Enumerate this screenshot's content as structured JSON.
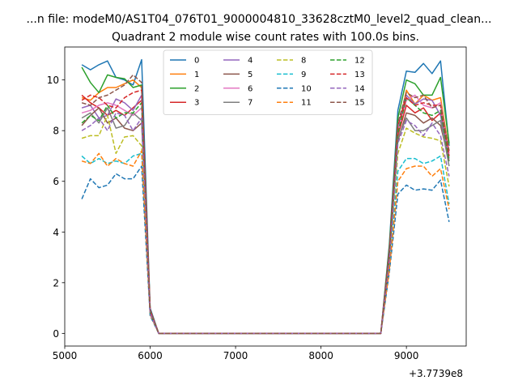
{
  "chart_data": {
    "type": "line",
    "suptitle": "...n file: modeM0/AS1T04_076T01_9000004810_33628cztM0_level2_quad_clean...",
    "title": "Quadrant 2 module wise count rates with 100.0s bins.",
    "xlabel": "",
    "ylabel": "",
    "x_offset_label": "+3.7739e8",
    "xlim": [
      5000,
      9700
    ],
    "ylim": [
      -0.5,
      11.3
    ],
    "xticks": [
      5000,
      6000,
      7000,
      8000,
      9000
    ],
    "yticks": [
      0,
      2,
      4,
      6,
      8,
      10
    ],
    "grid": false,
    "legend_position": "top-center",
    "legend_columns": 4,
    "x": [
      5200,
      5300,
      5400,
      5500,
      5600,
      5700,
      5800,
      5900,
      6000,
      6100,
      6200,
      6300,
      6400,
      6500,
      6600,
      6700,
      6800,
      6900,
      7000,
      7100,
      7200,
      7300,
      7400,
      7500,
      7600,
      7700,
      7800,
      7900,
      8000,
      8100,
      8200,
      8300,
      8400,
      8500,
      8600,
      8700,
      8800,
      8900,
      9000,
      9100,
      9200,
      9300,
      9400,
      9500
    ],
    "series": [
      {
        "name": "0",
        "color": "#1f77b4",
        "dash": false,
        "values": [
          10.6,
          10.4,
          10.6,
          10.75,
          10.1,
          10.0,
          9.8,
          10.8,
          1.0,
          0,
          0,
          0,
          0,
          0,
          0,
          0,
          0,
          0,
          0,
          0,
          0,
          0,
          0,
          0,
          0,
          0,
          0,
          0,
          0,
          0,
          0,
          0,
          0,
          0,
          0,
          0,
          3.5,
          8.8,
          10.35,
          10.3,
          10.65,
          10.25,
          10.75,
          7.4
        ]
      },
      {
        "name": "1",
        "color": "#ff7f0e",
        "dash": false,
        "values": [
          9.3,
          9.2,
          9.5,
          9.7,
          9.7,
          9.85,
          10.0,
          9.7,
          0.9,
          0,
          0,
          0,
          0,
          0,
          0,
          0,
          0,
          0,
          0,
          0,
          0,
          0,
          0,
          0,
          0,
          0,
          0,
          0,
          0,
          0,
          0,
          0,
          0,
          0,
          0,
          0,
          3.2,
          8.0,
          9.6,
          9.05,
          9.4,
          9.2,
          9.3,
          7.2
        ]
      },
      {
        "name": "2",
        "color": "#2ca02c",
        "dash": false,
        "values": [
          10.5,
          9.9,
          9.5,
          10.2,
          10.1,
          10.05,
          9.7,
          9.8,
          0.95,
          0,
          0,
          0,
          0,
          0,
          0,
          0,
          0,
          0,
          0,
          0,
          0,
          0,
          0,
          0,
          0,
          0,
          0,
          0,
          0,
          0,
          0,
          0,
          0,
          0,
          0,
          0,
          3.4,
          8.5,
          10.0,
          9.85,
          9.4,
          9.4,
          10.1,
          7.5
        ]
      },
      {
        "name": "3",
        "color": "#d62728",
        "dash": false,
        "values": [
          9.4,
          9.1,
          8.9,
          8.6,
          8.8,
          8.6,
          8.9,
          9.2,
          0.85,
          0,
          0,
          0,
          0,
          0,
          0,
          0,
          0,
          0,
          0,
          0,
          0,
          0,
          0,
          0,
          0,
          0,
          0,
          0,
          0,
          0,
          0,
          0,
          0,
          0,
          0,
          0,
          3.0,
          7.8,
          9.0,
          8.7,
          8.9,
          8.4,
          8.7,
          7.0
        ]
      },
      {
        "name": "4",
        "color": "#9467bd",
        "dash": false,
        "values": [
          8.9,
          9.0,
          8.5,
          8.6,
          9.25,
          9.1,
          8.8,
          9.4,
          0.9,
          0,
          0,
          0,
          0,
          0,
          0,
          0,
          0,
          0,
          0,
          0,
          0,
          0,
          0,
          0,
          0,
          0,
          0,
          0,
          0,
          0,
          0,
          0,
          0,
          0,
          0,
          0,
          3.1,
          8.1,
          9.4,
          9.05,
          9.25,
          9.2,
          8.6,
          6.9
        ]
      },
      {
        "name": "5",
        "color": "#8c564b",
        "dash": false,
        "values": [
          8.2,
          8.6,
          8.9,
          8.3,
          8.5,
          8.1,
          8.0,
          8.3,
          0.85,
          0,
          0,
          0,
          0,
          0,
          0,
          0,
          0,
          0,
          0,
          0,
          0,
          0,
          0,
          0,
          0,
          0,
          0,
          0,
          0,
          0,
          0,
          0,
          0,
          0,
          0,
          0,
          2.9,
          7.6,
          8.7,
          8.6,
          8.3,
          8.5,
          8.2,
          6.8
        ]
      },
      {
        "name": "6",
        "color": "#e377c2",
        "dash": false,
        "values": [
          8.7,
          8.8,
          9.0,
          9.1,
          9.0,
          8.8,
          8.6,
          8.9,
          0.9,
          0,
          0,
          0,
          0,
          0,
          0,
          0,
          0,
          0,
          0,
          0,
          0,
          0,
          0,
          0,
          0,
          0,
          0,
          0,
          0,
          0,
          0,
          0,
          0,
          0,
          0,
          0,
          3.1,
          8.0,
          9.2,
          9.4,
          9.0,
          8.9,
          9.1,
          7.1
        ]
      },
      {
        "name": "7",
        "color": "#7f7f7f",
        "dash": false,
        "values": [
          8.5,
          8.7,
          8.3,
          8.9,
          8.1,
          8.2,
          8.7,
          8.4,
          0.85,
          0,
          0,
          0,
          0,
          0,
          0,
          0,
          0,
          0,
          0,
          0,
          0,
          0,
          0,
          0,
          0,
          0,
          0,
          0,
          0,
          0,
          0,
          0,
          0,
          0,
          0,
          0,
          3.0,
          7.7,
          8.5,
          8.0,
          8.0,
          8.2,
          8.4,
          6.6
        ]
      },
      {
        "name": "8",
        "color": "#bcbd22",
        "dash": true,
        "values": [
          7.7,
          7.8,
          7.8,
          8.6,
          7.1,
          7.75,
          7.8,
          7.4,
          0.8,
          0,
          0,
          0,
          0,
          0,
          0,
          0,
          0,
          0,
          0,
          0,
          0,
          0,
          0,
          0,
          0,
          0,
          0,
          0,
          0,
          0,
          0,
          0,
          0,
          0,
          0,
          0,
          2.8,
          7.1,
          8.1,
          7.9,
          7.75,
          7.7,
          7.6,
          5.8
        ]
      },
      {
        "name": "9",
        "color": "#17becf",
        "dash": true,
        "values": [
          7.0,
          6.7,
          6.9,
          6.7,
          6.8,
          6.7,
          7.0,
          7.1,
          0.75,
          0,
          0,
          0,
          0,
          0,
          0,
          0,
          0,
          0,
          0,
          0,
          0,
          0,
          0,
          0,
          0,
          0,
          0,
          0,
          0,
          0,
          0,
          0,
          0,
          0,
          0,
          0,
          2.6,
          6.4,
          6.9,
          6.9,
          6.7,
          6.8,
          7.0,
          5.1
        ]
      },
      {
        "name": "10",
        "color": "#1f77b4",
        "dash": true,
        "values": [
          5.3,
          6.1,
          5.75,
          5.85,
          6.3,
          6.1,
          6.1,
          6.6,
          0.7,
          0,
          0,
          0,
          0,
          0,
          0,
          0,
          0,
          0,
          0,
          0,
          0,
          0,
          0,
          0,
          0,
          0,
          0,
          0,
          0,
          0,
          0,
          0,
          0,
          0,
          0,
          0,
          2.4,
          5.5,
          5.85,
          5.65,
          5.7,
          5.65,
          6.05,
          4.4
        ]
      },
      {
        "name": "11",
        "color": "#ff7f0e",
        "dash": true,
        "values": [
          6.8,
          6.7,
          7.1,
          6.6,
          6.9,
          6.7,
          6.6,
          7.2,
          0.75,
          0,
          0,
          0,
          0,
          0,
          0,
          0,
          0,
          0,
          0,
          0,
          0,
          0,
          0,
          0,
          0,
          0,
          0,
          0,
          0,
          0,
          0,
          0,
          0,
          0,
          0,
          0,
          2.5,
          6.0,
          6.5,
          6.6,
          6.6,
          6.2,
          6.5,
          4.9
        ]
      },
      {
        "name": "12",
        "color": "#2ca02c",
        "dash": true,
        "values": [
          8.3,
          8.6,
          8.4,
          9.0,
          8.5,
          8.7,
          8.7,
          9.1,
          0.85,
          0,
          0,
          0,
          0,
          0,
          0,
          0,
          0,
          0,
          0,
          0,
          0,
          0,
          0,
          0,
          0,
          0,
          0,
          0,
          0,
          0,
          0,
          0,
          0,
          0,
          0,
          0,
          3.0,
          7.9,
          9.3,
          9.0,
          8.7,
          8.6,
          8.8,
          6.8
        ]
      },
      {
        "name": "13",
        "color": "#d62728",
        "dash": true,
        "values": [
          9.2,
          9.4,
          9.3,
          9.0,
          8.9,
          9.3,
          9.5,
          9.6,
          0.9,
          0,
          0,
          0,
          0,
          0,
          0,
          0,
          0,
          0,
          0,
          0,
          0,
          0,
          0,
          0,
          0,
          0,
          0,
          0,
          0,
          0,
          0,
          0,
          0,
          0,
          0,
          0,
          3.2,
          8.2,
          9.3,
          9.0,
          9.1,
          9.0,
          9.0,
          7.0
        ]
      },
      {
        "name": "14",
        "color": "#9467bd",
        "dash": true,
        "values": [
          8.0,
          8.2,
          8.5,
          8.0,
          8.7,
          8.6,
          8.0,
          8.5,
          0.8,
          0,
          0,
          0,
          0,
          0,
          0,
          0,
          0,
          0,
          0,
          0,
          0,
          0,
          0,
          0,
          0,
          0,
          0,
          0,
          0,
          0,
          0,
          0,
          0,
          0,
          0,
          0,
          2.9,
          7.5,
          8.4,
          8.2,
          7.8,
          8.3,
          7.8,
          6.2
        ]
      },
      {
        "name": "15",
        "color": "#8c564b",
        "dash": true,
        "values": [
          9.1,
          9.0,
          9.3,
          9.4,
          9.6,
          9.8,
          10.2,
          9.9,
          0.95,
          0,
          0,
          0,
          0,
          0,
          0,
          0,
          0,
          0,
          0,
          0,
          0,
          0,
          0,
          0,
          0,
          0,
          0,
          0,
          0,
          0,
          0,
          0,
          0,
          0,
          0,
          0,
          3.3,
          8.3,
          9.5,
          9.3,
          9.4,
          8.9,
          9.0,
          7.2
        ]
      }
    ]
  }
}
